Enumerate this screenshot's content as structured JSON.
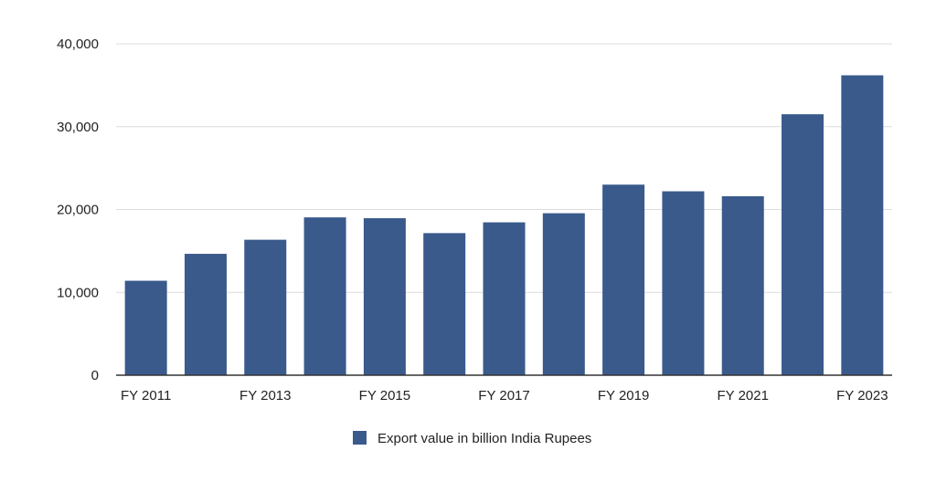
{
  "chart_data": {
    "type": "bar",
    "title": "",
    "xlabel": "",
    "ylabel": "",
    "categories": [
      "FY 2011",
      "FY 2012",
      "FY 2013",
      "FY 2014",
      "FY 2015",
      "FY 2016",
      "FY 2017",
      "FY 2018",
      "FY 2019",
      "FY 2020",
      "FY 2021",
      "FY 2022",
      "FY 2023"
    ],
    "x_tick_labels": [
      "FY 2011",
      "",
      "FY 2013",
      "",
      "FY 2015",
      "",
      "FY 2017",
      "",
      "FY 2019",
      "",
      "FY 2021",
      "",
      "FY 2023"
    ],
    "series": [
      {
        "name": "Export value in billion India Rupees",
        "color": "#3a5a8c",
        "values": [
          11400,
          14650,
          16350,
          19050,
          18950,
          17150,
          18450,
          19550,
          23000,
          22200,
          21600,
          31500,
          36200
        ]
      }
    ],
    "ylim": [
      0,
      40000
    ],
    "y_ticks": [
      0,
      10000,
      20000,
      30000,
      40000
    ],
    "y_tick_labels": [
      "0",
      "10,000",
      "20,000",
      "30,000",
      "40,000"
    ],
    "grid": true,
    "legend": "bottom-center"
  }
}
